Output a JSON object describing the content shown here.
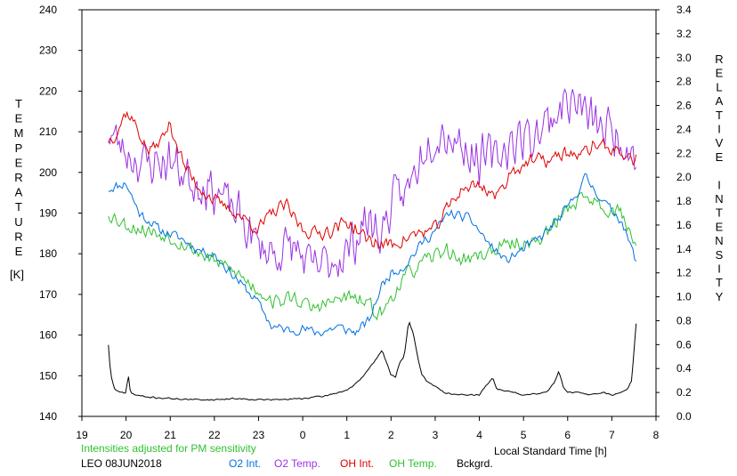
{
  "chart_data": {
    "type": "line",
    "left_axis": {
      "label_letters": [
        "T",
        "E",
        "M",
        "P",
        "E",
        "R",
        "A",
        "T",
        "U",
        "R",
        "E"
      ],
      "unit": "[K]",
      "min": 140,
      "max": 240,
      "ticks": [
        140,
        150,
        160,
        170,
        180,
        190,
        200,
        210,
        220,
        230,
        240
      ]
    },
    "right_axis": {
      "label_letters": [
        "R",
        "E",
        "L",
        "A",
        "T",
        "I",
        "V",
        "E",
        " ",
        "I",
        "N",
        "T",
        "E",
        "N",
        "S",
        "I",
        "T",
        "Y"
      ],
      "min": 0.0,
      "max": 3.4,
      "ticks": [
        0.0,
        0.2,
        0.4,
        0.6,
        0.8,
        1.0,
        1.2,
        1.4,
        1.6,
        1.8,
        2.0,
        2.2,
        2.4,
        2.6,
        2.8,
        3.0,
        3.2,
        3.4
      ]
    },
    "x_axis": {
      "label": "Local Standard Time [h]",
      "min": 19,
      "max": 32,
      "ticks": [
        19,
        20,
        21,
        22,
        23,
        24,
        25,
        26,
        27,
        28,
        29,
        30,
        31,
        32
      ],
      "tick_labels": [
        "19",
        "20",
        "21",
        "22",
        "23",
        "0",
        "1",
        "2",
        "3",
        "4",
        "5",
        "6",
        "7",
        "8"
      ]
    },
    "note": "Intensities adjusted for PM sensitivity",
    "station_date": "LEO 08JUN2018",
    "series": [
      {
        "name": "O2 Int.",
        "axis": "right",
        "color": "#0070e0",
        "noise": 0.05,
        "seed": 11,
        "x": [
          19.6,
          20.0,
          20.3,
          20.8,
          21.2,
          21.6,
          22.0,
          22.5,
          23.0,
          23.3,
          23.7,
          24.0,
          24.4,
          24.8,
          25.2,
          25.5,
          25.8,
          26.0,
          26.3,
          26.7,
          27.0,
          27.3,
          27.8,
          28.2,
          28.6,
          29.0,
          29.4,
          29.8,
          30.1,
          30.4,
          30.8,
          31.2,
          31.55
        ],
        "y": [
          1.9,
          1.95,
          1.7,
          1.55,
          1.5,
          1.4,
          1.35,
          1.15,
          0.95,
          0.75,
          0.72,
          0.73,
          0.7,
          0.75,
          0.7,
          0.8,
          1.1,
          1.2,
          1.25,
          1.45,
          1.55,
          1.7,
          1.65,
          1.45,
          1.3,
          1.4,
          1.5,
          1.65,
          1.8,
          2.0,
          1.8,
          1.65,
          1.3
        ]
      },
      {
        "name": "O2 Temp.",
        "axis": "left",
        "color": "#9a32e0",
        "noise": 7,
        "seed": 23,
        "x": [
          19.6,
          20.0,
          20.4,
          21.0,
          21.5,
          22.0,
          22.5,
          23.0,
          23.4,
          23.8,
          24.2,
          24.6,
          25.0,
          25.4,
          25.8,
          26.0,
          26.4,
          26.8,
          27.2,
          27.6,
          28.0,
          28.4,
          28.8,
          29.2,
          29.6,
          30.0,
          30.3,
          30.6,
          31.0,
          31.3,
          31.55
        ],
        "y": [
          210,
          205,
          202,
          203,
          198,
          196,
          190,
          182,
          180,
          182,
          176,
          178,
          180,
          188,
          185,
          192,
          196,
          208,
          210,
          207,
          203,
          204,
          208,
          209,
          213,
          218,
          216,
          212,
          210,
          208,
          204
        ]
      },
      {
        "name": "OH Int.",
        "axis": "left",
        "color": "#e00000",
        "noise": 2.2,
        "seed": 37,
        "x": [
          19.6,
          19.8,
          20.0,
          20.2,
          20.5,
          20.8,
          21.0,
          21.3,
          21.6,
          22.0,
          22.5,
          23.0,
          23.3,
          23.6,
          24.0,
          24.3,
          24.7,
          25.0,
          25.4,
          25.8,
          26.2,
          26.6,
          27.0,
          27.2,
          27.6,
          28.0,
          28.4,
          28.7,
          29.0,
          29.3,
          29.6,
          30.0,
          30.3,
          30.6,
          31.0,
          31.3,
          31.55
        ],
        "y": [
          208,
          210,
          215,
          212,
          205,
          208,
          212,
          202,
          197,
          193,
          190,
          186,
          190,
          192,
          186,
          185,
          186,
          188,
          184,
          182,
          183,
          185,
          186,
          190,
          196,
          197,
          194,
          200,
          202,
          203,
          203,
          205,
          204,
          207,
          206,
          204,
          203
        ]
      },
      {
        "name": "OH Temp.",
        "axis": "right",
        "color": "#30c030",
        "noise": 0.08,
        "seed": 53,
        "x": [
          19.6,
          20.0,
          20.5,
          21.0,
          21.5,
          22.0,
          22.5,
          23.0,
          23.4,
          23.8,
          24.2,
          24.6,
          25.0,
          25.4,
          25.8,
          26.0,
          26.4,
          26.8,
          27.2,
          27.6,
          28.0,
          28.4,
          28.8,
          29.2,
          29.6,
          30.0,
          30.4,
          30.8,
          31.2,
          31.55
        ],
        "y": [
          1.7,
          1.6,
          1.55,
          1.5,
          1.4,
          1.3,
          1.2,
          1.05,
          0.95,
          1.0,
          0.9,
          0.95,
          1.0,
          0.95,
          0.85,
          1.0,
          1.2,
          1.3,
          1.4,
          1.3,
          1.35,
          1.4,
          1.45,
          1.45,
          1.55,
          1.75,
          1.85,
          1.75,
          1.7,
          1.45
        ]
      },
      {
        "name": "Bckgrd.",
        "axis": "right",
        "color": "#000000",
        "noise": 0.008,
        "seed": 71,
        "x": [
          19.6,
          19.65,
          19.75,
          19.85,
          20.0,
          20.05,
          20.1,
          20.2,
          20.5,
          21.0,
          21.5,
          22.0,
          22.5,
          23.0,
          23.5,
          24.0,
          24.5,
          25.0,
          25.3,
          25.6,
          25.8,
          26.0,
          26.1,
          26.2,
          26.3,
          26.4,
          26.5,
          26.6,
          26.7,
          26.8,
          27.0,
          27.2,
          27.5,
          28.0,
          28.3,
          28.4,
          28.5,
          28.8,
          29.0,
          29.5,
          29.7,
          29.8,
          29.9,
          30.0,
          30.2,
          30.5,
          30.8,
          31.0,
          31.2,
          31.35,
          31.45,
          31.55
        ],
        "y": [
          0.6,
          0.35,
          0.22,
          0.2,
          0.2,
          0.35,
          0.2,
          0.18,
          0.16,
          0.15,
          0.14,
          0.14,
          0.15,
          0.14,
          0.14,
          0.15,
          0.17,
          0.22,
          0.3,
          0.45,
          0.55,
          0.35,
          0.33,
          0.45,
          0.5,
          0.8,
          0.7,
          0.5,
          0.35,
          0.3,
          0.25,
          0.2,
          0.18,
          0.18,
          0.33,
          0.22,
          0.22,
          0.2,
          0.18,
          0.2,
          0.28,
          0.38,
          0.25,
          0.2,
          0.2,
          0.18,
          0.2,
          0.18,
          0.2,
          0.22,
          0.3,
          0.78
        ]
      }
    ]
  }
}
